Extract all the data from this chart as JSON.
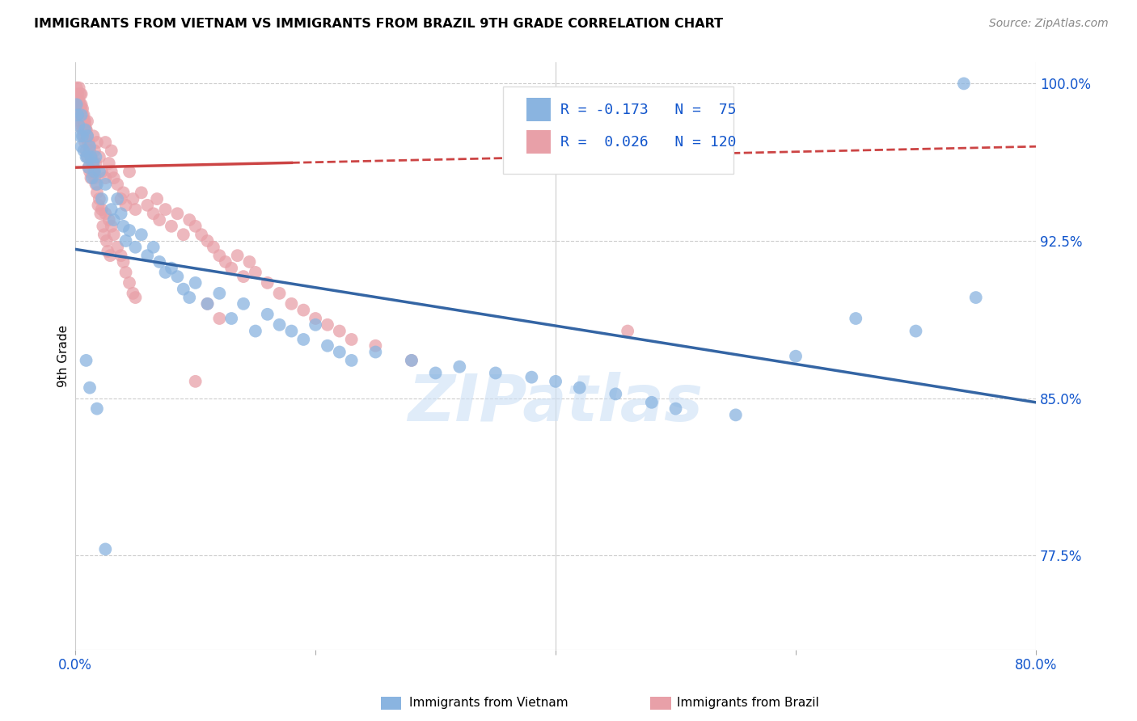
{
  "title": "IMMIGRANTS FROM VIETNAM VS IMMIGRANTS FROM BRAZIL 9TH GRADE CORRELATION CHART",
  "source": "Source: ZipAtlas.com",
  "ylabel": "9th Grade",
  "yticks": [
    1.0,
    0.925,
    0.85,
    0.775
  ],
  "ytick_labels": [
    "100.0%",
    "92.5%",
    "85.0%",
    "77.5%"
  ],
  "watermark": "ZIPatlas",
  "legend_r1": "R = -0.173",
  "legend_n1": "N =  75",
  "legend_r2": "R =  0.026",
  "legend_n2": "N = 120",
  "color_vietnam": "#8ab4e0",
  "color_brazil": "#e8a0a8",
  "color_trendline_vietnam": "#3465a4",
  "color_trendline_brazil": "#cc4444",
  "background_color": "#ffffff",
  "vietnam_x": [
    0.001,
    0.002,
    0.003,
    0.004,
    0.005,
    0.005,
    0.006,
    0.007,
    0.008,
    0.009,
    0.01,
    0.01,
    0.011,
    0.012,
    0.013,
    0.014,
    0.015,
    0.016,
    0.017,
    0.018,
    0.02,
    0.022,
    0.025,
    0.03,
    0.032,
    0.035,
    0.038,
    0.04,
    0.042,
    0.045,
    0.05,
    0.055,
    0.06,
    0.065,
    0.07,
    0.075,
    0.08,
    0.085,
    0.09,
    0.095,
    0.1,
    0.11,
    0.12,
    0.13,
    0.14,
    0.15,
    0.16,
    0.17,
    0.18,
    0.19,
    0.2,
    0.21,
    0.22,
    0.23,
    0.25,
    0.28,
    0.3,
    0.32,
    0.35,
    0.38,
    0.4,
    0.42,
    0.45,
    0.48,
    0.5,
    0.55,
    0.6,
    0.65,
    0.7,
    0.75,
    0.009,
    0.012,
    0.018,
    0.025,
    0.74
  ],
  "vietnam_y": [
    0.99,
    0.985,
    0.98,
    0.975,
    0.985,
    0.97,
    0.975,
    0.968,
    0.978,
    0.965,
    0.975,
    0.965,
    0.96,
    0.97,
    0.965,
    0.955,
    0.962,
    0.958,
    0.965,
    0.952,
    0.958,
    0.945,
    0.952,
    0.94,
    0.935,
    0.945,
    0.938,
    0.932,
    0.925,
    0.93,
    0.922,
    0.928,
    0.918,
    0.922,
    0.915,
    0.91,
    0.912,
    0.908,
    0.902,
    0.898,
    0.905,
    0.895,
    0.9,
    0.888,
    0.895,
    0.882,
    0.89,
    0.885,
    0.882,
    0.878,
    0.885,
    0.875,
    0.872,
    0.868,
    0.872,
    0.868,
    0.862,
    0.865,
    0.862,
    0.86,
    0.858,
    0.855,
    0.852,
    0.848,
    0.845,
    0.842,
    0.87,
    0.888,
    0.882,
    0.898,
    0.868,
    0.855,
    0.845,
    0.778,
    1.0
  ],
  "brazil_x": [
    0.001,
    0.001,
    0.002,
    0.002,
    0.003,
    0.003,
    0.004,
    0.004,
    0.005,
    0.005,
    0.005,
    0.006,
    0.006,
    0.007,
    0.007,
    0.008,
    0.008,
    0.009,
    0.009,
    0.01,
    0.01,
    0.01,
    0.011,
    0.011,
    0.012,
    0.012,
    0.013,
    0.013,
    0.014,
    0.015,
    0.015,
    0.016,
    0.017,
    0.018,
    0.02,
    0.022,
    0.025,
    0.025,
    0.028,
    0.03,
    0.03,
    0.032,
    0.035,
    0.038,
    0.04,
    0.042,
    0.045,
    0.048,
    0.05,
    0.055,
    0.06,
    0.065,
    0.068,
    0.07,
    0.075,
    0.08,
    0.085,
    0.09,
    0.095,
    0.1,
    0.105,
    0.11,
    0.115,
    0.12,
    0.125,
    0.13,
    0.135,
    0.14,
    0.145,
    0.15,
    0.16,
    0.17,
    0.18,
    0.19,
    0.2,
    0.21,
    0.22,
    0.23,
    0.25,
    0.28,
    0.003,
    0.004,
    0.005,
    0.006,
    0.007,
    0.008,
    0.009,
    0.01,
    0.011,
    0.012,
    0.013,
    0.014,
    0.015,
    0.016,
    0.017,
    0.018,
    0.02,
    0.022,
    0.025,
    0.028,
    0.03,
    0.032,
    0.035,
    0.038,
    0.04,
    0.042,
    0.045,
    0.048,
    0.05,
    0.46,
    0.11,
    0.12,
    0.019,
    0.021,
    0.023,
    0.024,
    0.026,
    0.027,
    0.029,
    0.1
  ],
  "brazil_y": [
    0.998,
    0.992,
    0.995,
    0.988,
    0.992,
    0.985,
    0.99,
    0.982,
    0.988,
    0.995,
    0.98,
    0.985,
    0.978,
    0.982,
    0.975,
    0.98,
    0.972,
    0.978,
    0.968,
    0.982,
    0.975,
    0.965,
    0.972,
    0.96,
    0.968,
    0.958,
    0.965,
    0.955,
    0.962,
    0.975,
    0.958,
    0.968,
    0.962,
    0.972,
    0.965,
    0.958,
    0.972,
    0.955,
    0.962,
    0.958,
    0.968,
    0.955,
    0.952,
    0.945,
    0.948,
    0.942,
    0.958,
    0.945,
    0.94,
    0.948,
    0.942,
    0.938,
    0.945,
    0.935,
    0.94,
    0.932,
    0.938,
    0.928,
    0.935,
    0.932,
    0.928,
    0.925,
    0.922,
    0.918,
    0.915,
    0.912,
    0.918,
    0.908,
    0.915,
    0.91,
    0.905,
    0.9,
    0.895,
    0.892,
    0.888,
    0.885,
    0.882,
    0.878,
    0.875,
    0.868,
    0.998,
    0.995,
    0.99,
    0.988,
    0.985,
    0.982,
    0.978,
    0.975,
    0.972,
    0.968,
    0.965,
    0.962,
    0.958,
    0.955,
    0.952,
    0.948,
    0.945,
    0.94,
    0.938,
    0.935,
    0.932,
    0.928,
    0.922,
    0.918,
    0.915,
    0.91,
    0.905,
    0.9,
    0.898,
    0.882,
    0.895,
    0.888,
    0.942,
    0.938,
    0.932,
    0.928,
    0.925,
    0.92,
    0.918,
    0.858
  ],
  "xlim": [
    0.0,
    0.8
  ],
  "ylim": [
    0.73,
    1.01
  ],
  "trendline_vietnam_x0": 0.0,
  "trendline_vietnam_x1": 0.8,
  "trendline_vietnam_y0": 0.921,
  "trendline_vietnam_y1": 0.848,
  "trendline_brazil_solid_x0": 0.0,
  "trendline_brazil_solid_x1": 0.18,
  "trendline_brazil_dash_x0": 0.18,
  "trendline_brazil_dash_x1": 0.8,
  "trendline_brazil_y0": 0.96,
  "trendline_brazil_y1": 0.97
}
